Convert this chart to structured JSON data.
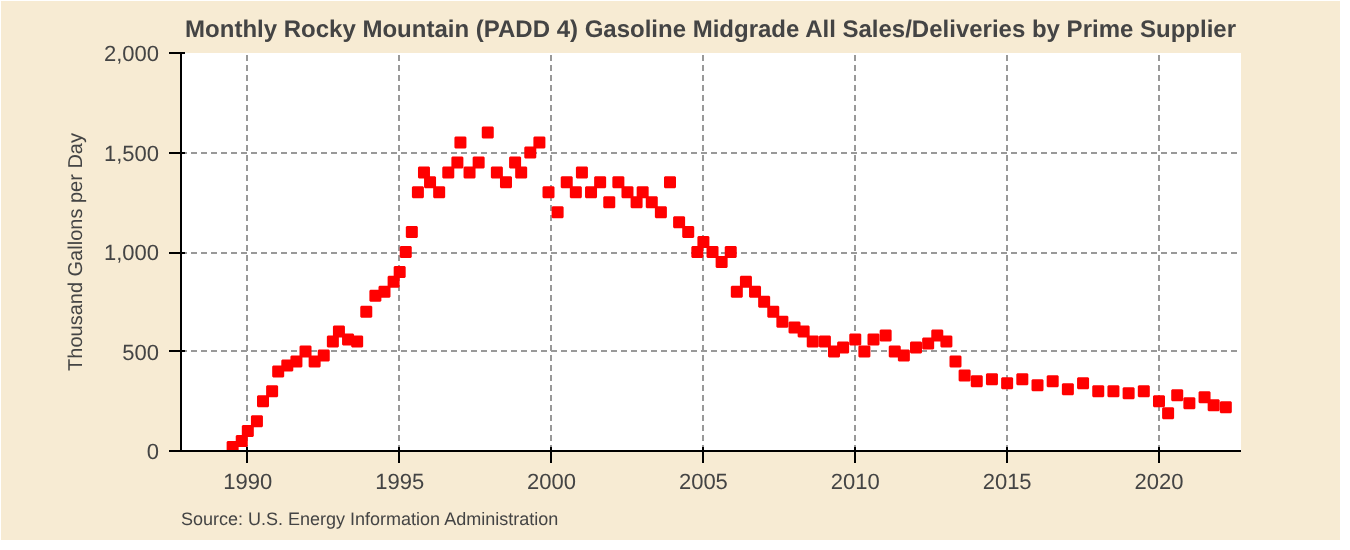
{
  "chart_data": {
    "type": "scatter",
    "title": "Monthly Rocky Mountain (PADD 4) Gasoline Midgrade All Sales/Deliveries by Prime Supplier",
    "ylabel": "Thousand Gallons per Day",
    "annotations": [
      "Source: U.S. Energy Information Administration"
    ],
    "x": [
      1989.5,
      1989.8,
      1990.0,
      1990.3,
      1990.5,
      1990.8,
      1991.0,
      1991.3,
      1991.6,
      1991.9,
      1992.2,
      1992.5,
      1992.8,
      1993.0,
      1993.3,
      1993.6,
      1993.9,
      1994.2,
      1994.5,
      1994.8,
      1995.0,
      1995.2,
      1995.4,
      1995.6,
      1995.8,
      1996.0,
      1996.3,
      1996.6,
      1996.9,
      1997.0,
      1997.3,
      1997.6,
      1997.9,
      1998.2,
      1998.5,
      1998.8,
      1999.0,
      1999.3,
      1999.6,
      1999.9,
      2000.2,
      2000.5,
      2000.8,
      2001.0,
      2001.3,
      2001.6,
      2001.9,
      2002.2,
      2002.5,
      2002.8,
      2003.0,
      2003.3,
      2003.6,
      2003.9,
      2004.2,
      2004.5,
      2004.8,
      2005.0,
      2005.3,
      2005.6,
      2005.9,
      2006.1,
      2006.4,
      2006.7,
      2007.0,
      2007.3,
      2007.6,
      2008.0,
      2008.3,
      2008.6,
      2009.0,
      2009.3,
      2009.6,
      2010.0,
      2010.3,
      2010.6,
      2011.0,
      2011.3,
      2011.6,
      2012.0,
      2012.4,
      2012.7,
      2013.0,
      2013.3,
      2013.6,
      2014.0,
      2014.5,
      2015.0,
      2015.5,
      2016.0,
      2016.5,
      2017.0,
      2017.5,
      2018.0,
      2018.5,
      2019.0,
      2019.5,
      2020.0,
      2020.3,
      2020.6,
      2021.0,
      2021.5,
      2021.8,
      2022.2
    ],
    "series": [
      {
        "color": "#ff0000",
        "values": [
          20,
          50,
          100,
          150,
          250,
          300,
          400,
          430,
          450,
          500,
          450,
          480,
          550,
          600,
          560,
          550,
          700,
          780,
          800,
          850,
          900,
          1000,
          1100,
          1300,
          1400,
          1350,
          1300,
          1400,
          1450,
          1550,
          1400,
          1450,
          1600,
          1400,
          1350,
          1450,
          1400,
          1500,
          1550,
          1300,
          1200,
          1350,
          1300,
          1400,
          1300,
          1350,
          1250,
          1350,
          1300,
          1250,
          1300,
          1250,
          1200,
          1350,
          1150,
          1100,
          1000,
          1050,
          1000,
          950,
          1000,
          800,
          850,
          800,
          750,
          700,
          650,
          620,
          600,
          550,
          550,
          500,
          520,
          560,
          500,
          560,
          580,
          500,
          480,
          520,
          540,
          580,
          550,
          450,
          380,
          350,
          360,
          340,
          360,
          330,
          350,
          310,
          340,
          300,
          300,
          290,
          300,
          250,
          190,
          280,
          240,
          270,
          230,
          220
        ]
      }
    ],
    "xlim": [
      1987.8,
      2022.7
    ],
    "xticks": [
      1990,
      1995,
      2000,
      2005,
      2010,
      2015,
      2020
    ],
    "ylim": [
      0,
      2000
    ],
    "yticks": [
      0,
      {
        "value": 500,
        "label": "500"
      },
      {
        "value": 1000,
        "label": "1,000"
      },
      {
        "value": 1500,
        "label": "1,500"
      },
      {
        "value": 2000,
        "label": "2,000"
      }
    ],
    "grid": true,
    "marker": "square"
  }
}
